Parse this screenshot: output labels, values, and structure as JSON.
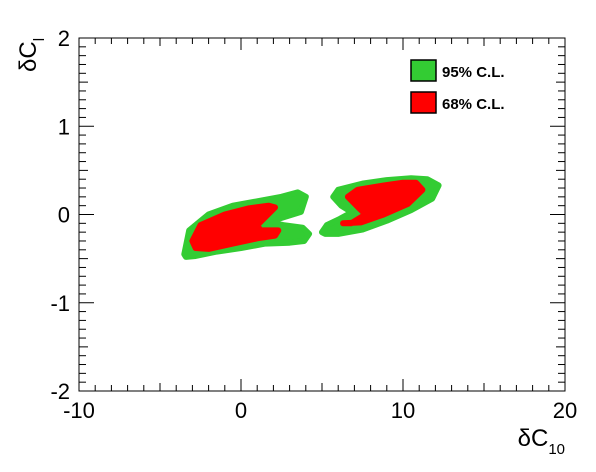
{
  "chart_data": {
    "type": "contour",
    "xlabel": {
      "main": "δC",
      "sub": "10"
    },
    "ylabel": {
      "main": "δC",
      "sub": "l"
    },
    "xlim": [
      -10,
      20
    ],
    "ylim": [
      -2,
      2
    ],
    "x_ticks": [
      "-10",
      "0",
      "10",
      "20"
    ],
    "y_ticks": [
      "-2",
      "-1",
      "0",
      "1",
      "2"
    ],
    "grid": false,
    "legend_position": "top-right",
    "legend": [
      {
        "label": "95% C.L.",
        "color": "#33cc33"
      },
      {
        "label": "68% C.L.",
        "color": "#ff0000"
      }
    ],
    "regions": [
      {
        "name": "95% C.L.",
        "color": "#33cc33",
        "polygons": [
          [
            [
              -3.5,
              -0.45
            ],
            [
              -3.2,
              -0.18
            ],
            [
              -2.0,
              0.0
            ],
            [
              -0.5,
              0.1
            ],
            [
              1.0,
              0.15
            ],
            [
              2.5,
              0.2
            ],
            [
              3.5,
              0.25
            ],
            [
              4.0,
              0.2
            ],
            [
              3.7,
              0.03
            ],
            [
              2.3,
              -0.05
            ],
            [
              2.1,
              -0.1
            ],
            [
              2.6,
              -0.12
            ],
            [
              3.8,
              -0.15
            ],
            [
              4.2,
              -0.22
            ],
            [
              3.9,
              -0.3
            ],
            [
              3.0,
              -0.32
            ],
            [
              1.5,
              -0.33
            ],
            [
              0.0,
              -0.38
            ],
            [
              -1.5,
              -0.42
            ],
            [
              -2.8,
              -0.47
            ],
            [
              -3.4,
              -0.48
            ]
          ],
          [
            [
              5.0,
              -0.2
            ],
            [
              5.3,
              -0.12
            ],
            [
              6.1,
              -0.05
            ],
            [
              6.6,
              0.0
            ],
            [
              6.8,
              0.03
            ],
            [
              6.2,
              0.1
            ],
            [
              5.7,
              0.2
            ],
            [
              6.0,
              0.28
            ],
            [
              7.5,
              0.35
            ],
            [
              9.0,
              0.39
            ],
            [
              10.5,
              0.41
            ],
            [
              11.5,
              0.4
            ],
            [
              12.2,
              0.33
            ],
            [
              11.8,
              0.18
            ],
            [
              10.5,
              0.05
            ],
            [
              9.0,
              -0.07
            ],
            [
              7.5,
              -0.17
            ],
            [
              6.0,
              -0.22
            ],
            [
              5.2,
              -0.22
            ]
          ]
        ]
      },
      {
        "name": "68% C.L.",
        "color": "#ff0000",
        "polygons": [
          [
            [
              -3.0,
              -0.3
            ],
            [
              -2.5,
              -0.12
            ],
            [
              -1.0,
              0.0
            ],
            [
              0.5,
              0.07
            ],
            [
              1.7,
              0.1
            ],
            [
              2.1,
              0.08
            ],
            [
              1.0,
              -0.12
            ],
            [
              1.2,
              -0.18
            ],
            [
              2.3,
              -0.18
            ],
            [
              2.1,
              -0.24
            ],
            [
              1.0,
              -0.27
            ],
            [
              -0.5,
              -0.33
            ],
            [
              -2.0,
              -0.39
            ],
            [
              -2.8,
              -0.38
            ]
          ],
          [
            [
              6.3,
              -0.1
            ],
            [
              6.8,
              -0.1
            ],
            [
              7.7,
              0.0
            ],
            [
              7.3,
              0.07
            ],
            [
              6.6,
              0.2
            ],
            [
              7.2,
              0.28
            ],
            [
              8.5,
              0.32
            ],
            [
              10.0,
              0.36
            ],
            [
              10.8,
              0.36
            ],
            [
              11.2,
              0.28
            ],
            [
              10.3,
              0.12
            ],
            [
              8.8,
              0.0
            ],
            [
              7.4,
              -0.09
            ]
          ]
        ]
      }
    ]
  }
}
